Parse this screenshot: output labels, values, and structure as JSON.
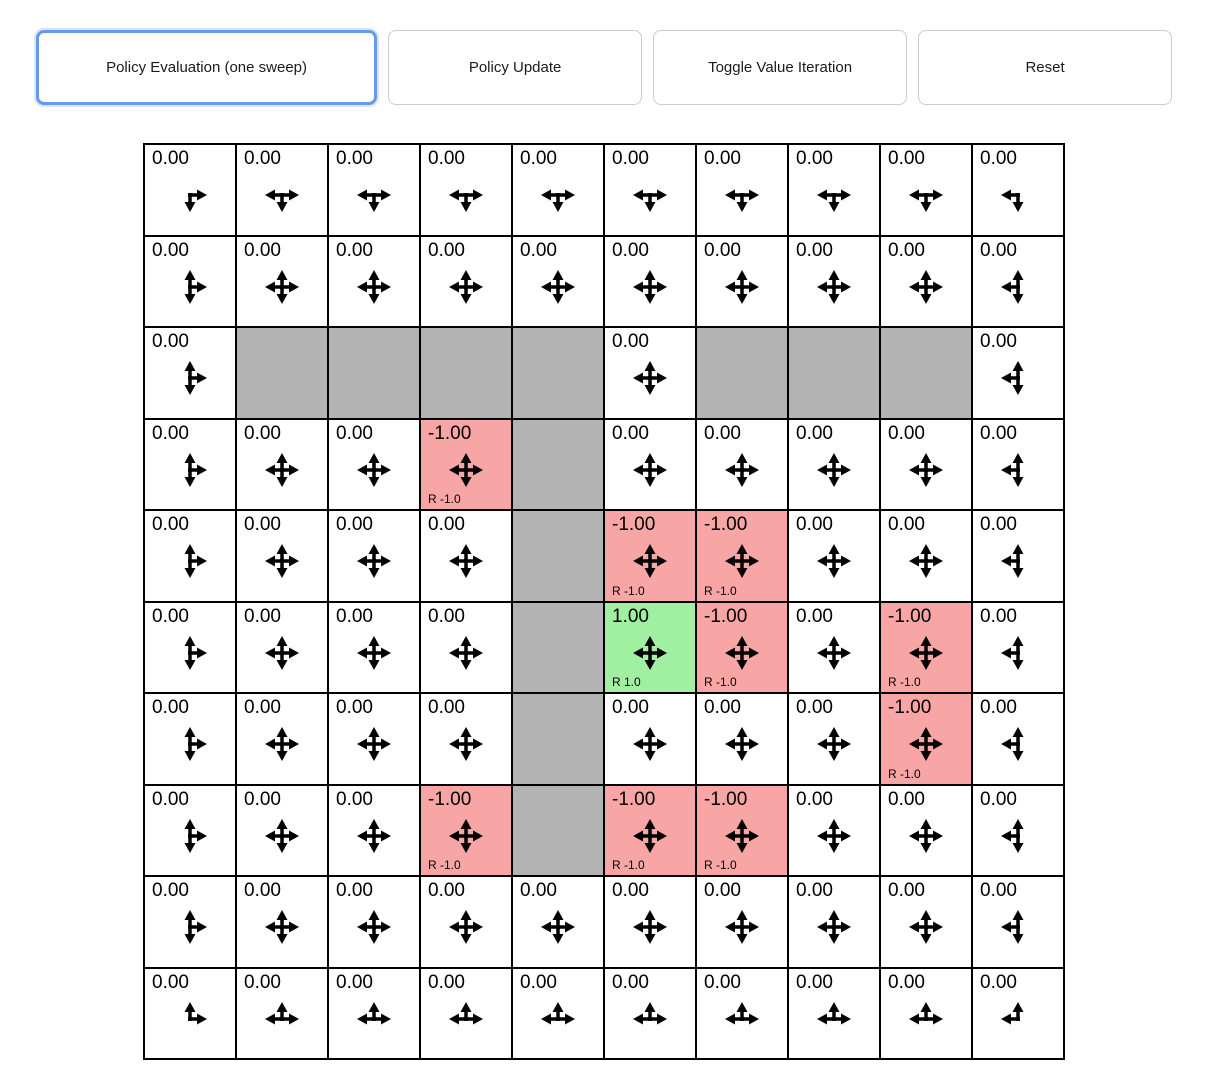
{
  "toolbar": {
    "buttons": [
      {
        "label": "Policy Evaluation (one sweep)",
        "active": true
      },
      {
        "label": "Policy Update",
        "active": false
      },
      {
        "label": "Toggle Value Iteration",
        "active": false
      },
      {
        "label": "Reset",
        "active": false
      }
    ]
  },
  "colors": {
    "active_button_border": "#6699ee",
    "wall": "#b3b3b3",
    "negative_cell": "#f8a5a5",
    "positive_cell": "#a1f0a1",
    "grid_line": "#000000"
  },
  "grid": {
    "rows_count": 10,
    "cols_count": 10,
    "arrow_legend": "u=up d=down l=left r=right (policy action arrows)",
    "rows": [
      [
        {
          "value": "0.00",
          "arrows": "dr"
        },
        {
          "value": "0.00",
          "arrows": "dlr"
        },
        {
          "value": "0.00",
          "arrows": "dlr"
        },
        {
          "value": "0.00",
          "arrows": "dlr"
        },
        {
          "value": "0.00",
          "arrows": "dlr"
        },
        {
          "value": "0.00",
          "arrows": "dlr"
        },
        {
          "value": "0.00",
          "arrows": "dlr"
        },
        {
          "value": "0.00",
          "arrows": "dlr"
        },
        {
          "value": "0.00",
          "arrows": "dlr"
        },
        {
          "value": "0.00",
          "arrows": "dl"
        }
      ],
      [
        {
          "value": "0.00",
          "arrows": "udr"
        },
        {
          "value": "0.00",
          "arrows": "udlr"
        },
        {
          "value": "0.00",
          "arrows": "udlr"
        },
        {
          "value": "0.00",
          "arrows": "udlr"
        },
        {
          "value": "0.00",
          "arrows": "udlr"
        },
        {
          "value": "0.00",
          "arrows": "udlr"
        },
        {
          "value": "0.00",
          "arrows": "udlr"
        },
        {
          "value": "0.00",
          "arrows": "udlr"
        },
        {
          "value": "0.00",
          "arrows": "udlr"
        },
        {
          "value": "0.00",
          "arrows": "udl"
        }
      ],
      [
        {
          "value": "0.00",
          "arrows": "udr"
        },
        {
          "wall": true
        },
        {
          "wall": true
        },
        {
          "wall": true
        },
        {
          "wall": true
        },
        {
          "value": "0.00",
          "arrows": "udlr"
        },
        {
          "wall": true
        },
        {
          "wall": true
        },
        {
          "wall": true
        },
        {
          "value": "0.00",
          "arrows": "udl"
        }
      ],
      [
        {
          "value": "0.00",
          "arrows": "udr"
        },
        {
          "value": "0.00",
          "arrows": "udlr"
        },
        {
          "value": "0.00",
          "arrows": "udlr"
        },
        {
          "value": "-1.00",
          "reward": "R -1.0",
          "color": "red",
          "arrows": "udlr"
        },
        {
          "wall": true
        },
        {
          "value": "0.00",
          "arrows": "udlr"
        },
        {
          "value": "0.00",
          "arrows": "udlr"
        },
        {
          "value": "0.00",
          "arrows": "udlr"
        },
        {
          "value": "0.00",
          "arrows": "udlr"
        },
        {
          "value": "0.00",
          "arrows": "udl"
        }
      ],
      [
        {
          "value": "0.00",
          "arrows": "udr"
        },
        {
          "value": "0.00",
          "arrows": "udlr"
        },
        {
          "value": "0.00",
          "arrows": "udlr"
        },
        {
          "value": "0.00",
          "arrows": "udlr"
        },
        {
          "wall": true
        },
        {
          "value": "-1.00",
          "reward": "R -1.0",
          "color": "red",
          "arrows": "udlr"
        },
        {
          "value": "-1.00",
          "reward": "R -1.0",
          "color": "red",
          "arrows": "udlr"
        },
        {
          "value": "0.00",
          "arrows": "udlr"
        },
        {
          "value": "0.00",
          "arrows": "udlr"
        },
        {
          "value": "0.00",
          "arrows": "udl"
        }
      ],
      [
        {
          "value": "0.00",
          "arrows": "udr"
        },
        {
          "value": "0.00",
          "arrows": "udlr"
        },
        {
          "value": "0.00",
          "arrows": "udlr"
        },
        {
          "value": "0.00",
          "arrows": "udlr"
        },
        {
          "wall": true
        },
        {
          "value": "1.00",
          "reward": "R 1.0",
          "color": "green",
          "arrows": "udlr"
        },
        {
          "value": "-1.00",
          "reward": "R -1.0",
          "color": "red",
          "arrows": "udlr"
        },
        {
          "value": "0.00",
          "arrows": "udlr"
        },
        {
          "value": "-1.00",
          "reward": "R -1.0",
          "color": "red",
          "arrows": "udlr"
        },
        {
          "value": "0.00",
          "arrows": "udl"
        }
      ],
      [
        {
          "value": "0.00",
          "arrows": "udr"
        },
        {
          "value": "0.00",
          "arrows": "udlr"
        },
        {
          "value": "0.00",
          "arrows": "udlr"
        },
        {
          "value": "0.00",
          "arrows": "udlr"
        },
        {
          "wall": true
        },
        {
          "value": "0.00",
          "arrows": "udlr"
        },
        {
          "value": "0.00",
          "arrows": "udlr"
        },
        {
          "value": "0.00",
          "arrows": "udlr"
        },
        {
          "value": "-1.00",
          "reward": "R -1.0",
          "color": "red",
          "arrows": "udlr"
        },
        {
          "value": "0.00",
          "arrows": "udl"
        }
      ],
      [
        {
          "value": "0.00",
          "arrows": "udr"
        },
        {
          "value": "0.00",
          "arrows": "udlr"
        },
        {
          "value": "0.00",
          "arrows": "udlr"
        },
        {
          "value": "-1.00",
          "reward": "R -1.0",
          "color": "red",
          "arrows": "udlr"
        },
        {
          "wall": true
        },
        {
          "value": "-1.00",
          "reward": "R -1.0",
          "color": "red",
          "arrows": "udlr"
        },
        {
          "value": "-1.00",
          "reward": "R -1.0",
          "color": "red",
          "arrows": "udlr"
        },
        {
          "value": "0.00",
          "arrows": "udlr"
        },
        {
          "value": "0.00",
          "arrows": "udlr"
        },
        {
          "value": "0.00",
          "arrows": "udl"
        }
      ],
      [
        {
          "value": "0.00",
          "arrows": "udr"
        },
        {
          "value": "0.00",
          "arrows": "udlr"
        },
        {
          "value": "0.00",
          "arrows": "udlr"
        },
        {
          "value": "0.00",
          "arrows": "udlr"
        },
        {
          "value": "0.00",
          "arrows": "udlr"
        },
        {
          "value": "0.00",
          "arrows": "udlr"
        },
        {
          "value": "0.00",
          "arrows": "udlr"
        },
        {
          "value": "0.00",
          "arrows": "udlr"
        },
        {
          "value": "0.00",
          "arrows": "udlr"
        },
        {
          "value": "0.00",
          "arrows": "udl"
        }
      ],
      [
        {
          "value": "0.00",
          "arrows": "ur"
        },
        {
          "value": "0.00",
          "arrows": "ulr"
        },
        {
          "value": "0.00",
          "arrows": "ulr"
        },
        {
          "value": "0.00",
          "arrows": "ulr"
        },
        {
          "value": "0.00",
          "arrows": "ulr"
        },
        {
          "value": "0.00",
          "arrows": "ulr"
        },
        {
          "value": "0.00",
          "arrows": "ulr"
        },
        {
          "value": "0.00",
          "arrows": "ulr"
        },
        {
          "value": "0.00",
          "arrows": "ulr"
        },
        {
          "value": "0.00",
          "arrows": "ul"
        }
      ]
    ]
  }
}
